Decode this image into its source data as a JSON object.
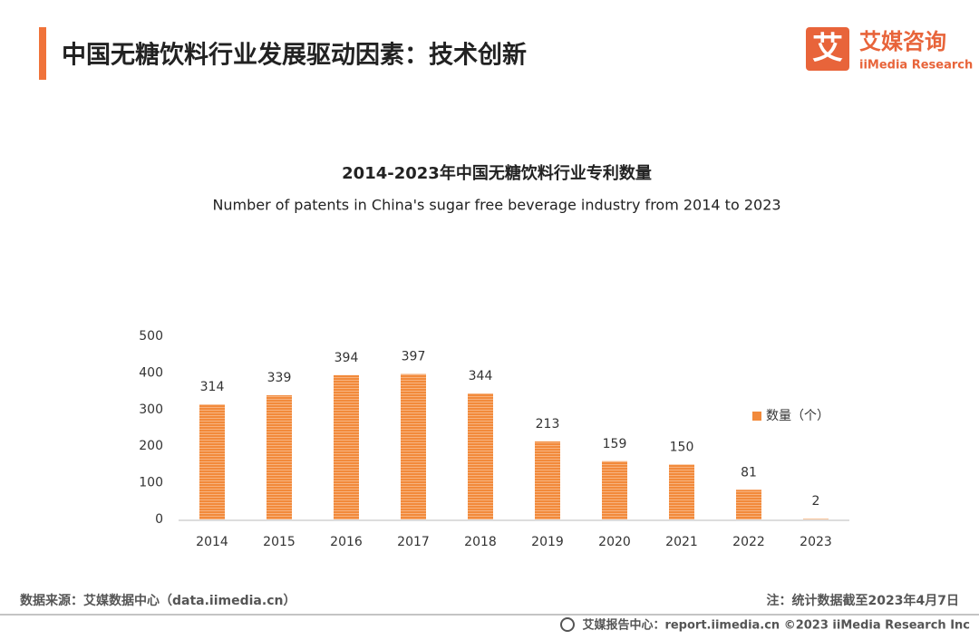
{
  "header": {
    "title": "中国无糖饮料行业发展驱动因素：技术创新",
    "logo_mark": "艾",
    "logo_name": "艾媒咨询",
    "logo_sub": "iiMedia Research"
  },
  "chart_data": {
    "type": "bar",
    "title": "2014-2023年中国无糖饮料行业专利数量",
    "subtitle": "Number of patents in China's sugar free beverage industry from 2014 to 2023",
    "categories": [
      "2014",
      "2015",
      "2016",
      "2017",
      "2018",
      "2019",
      "2020",
      "2021",
      "2022",
      "2023"
    ],
    "series": [
      {
        "name": "数量（个）",
        "color": "#f28a3b",
        "values": [
          314,
          339,
          394,
          397,
          344,
          213,
          159,
          150,
          81,
          2
        ]
      }
    ],
    "ylim": [
      0,
      500
    ],
    "yticks": [
      0,
      100,
      200,
      300,
      400,
      500
    ],
    "grid": false,
    "legend": "right"
  },
  "footer": {
    "source": "数据来源：艾媒数据中心（data.iimedia.cn）",
    "note": "注：统计数据截至2023年4月7日",
    "credit": "艾媒报告中心：report.iimedia.cn  ©2023  iiMedia Research  Inc"
  }
}
